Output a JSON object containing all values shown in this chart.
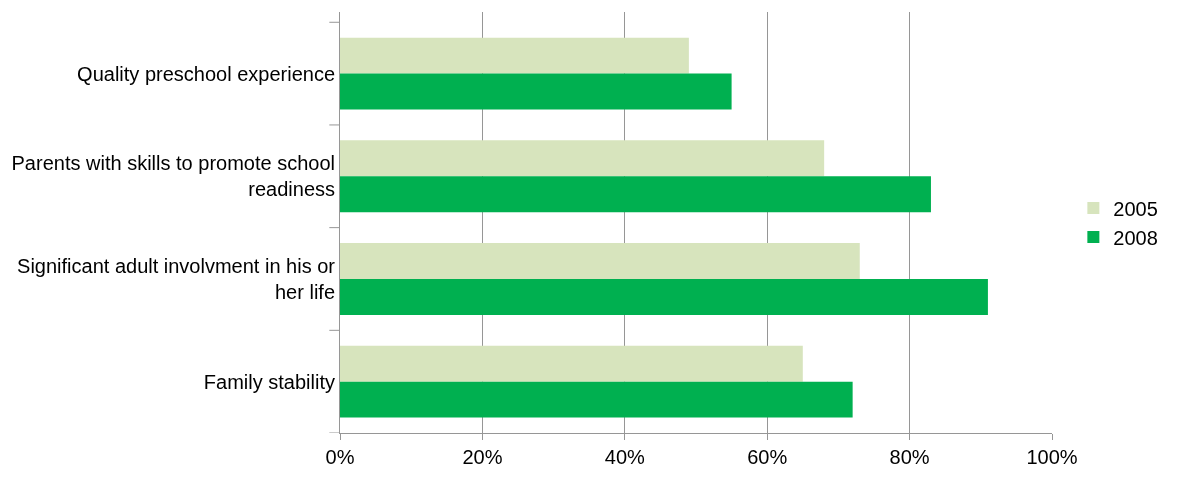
{
  "chart_data": {
    "type": "bar",
    "orientation": "horizontal",
    "categories": [
      "Quality preschool experience",
      "Parents with skills to promote school readiness",
      "Significant adult involvment in his or her life",
      "Family stability"
    ],
    "series": [
      {
        "name": "2005",
        "color": "#d7e4bd",
        "values": [
          49,
          68,
          73,
          65
        ]
      },
      {
        "name": "2008",
        "color": "#00b050",
        "values": [
          55,
          83,
          91,
          72
        ]
      }
    ],
    "xlim": [
      0,
      100
    ],
    "xticks": [
      {
        "value": 0,
        "label": "0%"
      },
      {
        "value": 20,
        "label": "20%"
      },
      {
        "value": 40,
        "label": "40%"
      },
      {
        "value": 60,
        "label": "60%"
      },
      {
        "value": 80,
        "label": "80%"
      },
      {
        "value": 100,
        "label": "100%"
      }
    ],
    "grid": "x",
    "legend": "right"
  }
}
